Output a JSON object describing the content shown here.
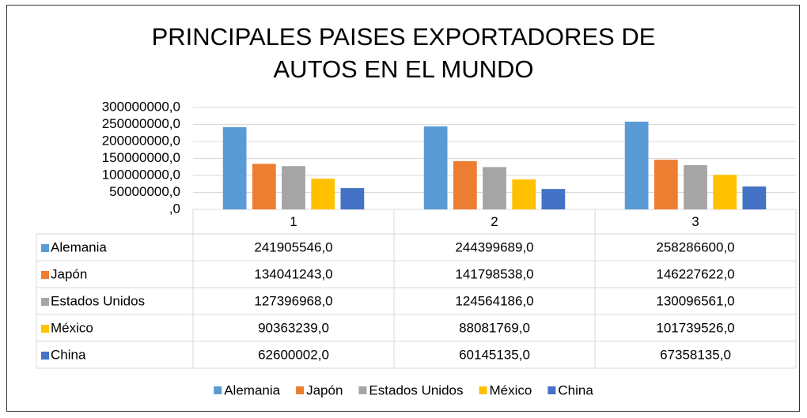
{
  "chart_data": {
    "type": "bar",
    "title": "PRINCIPALES PAISES EXPORTADORES DE AUTOS EN EL MUNDO",
    "categories": [
      "1",
      "2",
      "3"
    ],
    "series": [
      {
        "name": "Alemania",
        "color": "#5b9bd5",
        "values": [
          241905546,
          244399689,
          258286600
        ],
        "value_labels": [
          "241905546,0",
          "244399689,0",
          "258286600,0"
        ]
      },
      {
        "name": "Japón",
        "color": "#ed7d31",
        "values": [
          134041243,
          141798538,
          146227622
        ],
        "value_labels": [
          "134041243,0",
          "141798538,0",
          "146227622,0"
        ]
      },
      {
        "name": "Estados Unidos",
        "color": "#a5a5a5",
        "values": [
          127396968,
          124564186,
          130096561
        ],
        "value_labels": [
          "127396968,0",
          "124564186,0",
          "130096561,0"
        ]
      },
      {
        "name": "México",
        "color": "#ffc000",
        "values": [
          90363239,
          88081769,
          101739526
        ],
        "value_labels": [
          "90363239,0",
          "88081769,0",
          "101739526,0"
        ]
      },
      {
        "name": "China",
        "color": "#4472c4",
        "values": [
          62600002,
          60145135,
          67358135
        ],
        "value_labels": [
          "62600002,0",
          "60145135,0",
          "67358135,0"
        ]
      }
    ],
    "ylim": [
      0,
      300000000
    ],
    "yticks": [
      {
        "value": 0,
        "label": ",0"
      },
      {
        "value": 50000000,
        "label": "50000000,0"
      },
      {
        "value": 100000000,
        "label": "100000000,0"
      },
      {
        "value": 150000000,
        "label": "150000000,0"
      },
      {
        "value": 200000000,
        "label": "200000000,0"
      },
      {
        "value": 250000000,
        "label": "250000000,0"
      },
      {
        "value": 300000000,
        "label": "300000000,0"
      }
    ],
    "grid": true,
    "legend": "bottom"
  }
}
